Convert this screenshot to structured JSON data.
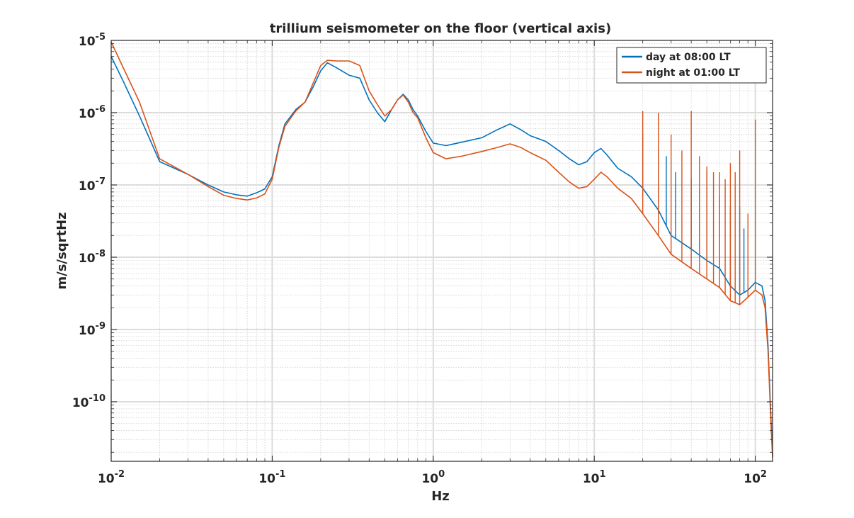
{
  "chart_data": {
    "type": "line",
    "title": "trillium seismometer on the floor (vertical axis)",
    "xlabel": "Hz",
    "ylabel": "m/s/sqrtHz",
    "xscale": "log",
    "yscale": "log",
    "xlim": [
      0.01,
      128
    ],
    "ylim": [
      1.5e-11,
      1e-05
    ],
    "grid": "on (major and minor)",
    "legend_location": "top-right",
    "x_ticks": [
      {
        "base": "10",
        "exp": "-2",
        "value": 0.01
      },
      {
        "base": "10",
        "exp": "-1",
        "value": 0.1
      },
      {
        "base": "10",
        "exp": "0",
        "value": 1
      },
      {
        "base": "10",
        "exp": "1",
        "value": 10
      },
      {
        "base": "10",
        "exp": "2",
        "value": 100
      }
    ],
    "y_ticks": [
      {
        "base": "10",
        "exp": "-10",
        "value": 1e-10
      },
      {
        "base": "10",
        "exp": "-9",
        "value": 1e-09
      },
      {
        "base": "10",
        "exp": "-8",
        "value": 1e-08
      },
      {
        "base": "10",
        "exp": "-7",
        "value": 1e-07
      },
      {
        "base": "10",
        "exp": "-6",
        "value": 1e-06
      },
      {
        "base": "10",
        "exp": "-5",
        "value": 1e-05
      }
    ],
    "series": [
      {
        "name": "day at 08:00 LT",
        "color": "#0072bd",
        "points": [
          [
            0.01,
            6e-06
          ],
          [
            0.012,
            2.6e-06
          ],
          [
            0.015,
            9e-07
          ],
          [
            0.02,
            2.1e-07
          ],
          [
            0.03,
            1.4e-07
          ],
          [
            0.04,
            1e-07
          ],
          [
            0.05,
            8e-08
          ],
          [
            0.06,
            7.3e-08
          ],
          [
            0.07,
            7e-08
          ],
          [
            0.08,
            7.8e-08
          ],
          [
            0.09,
            8.8e-08
          ],
          [
            0.1,
            1.3e-07
          ],
          [
            0.11,
            3.5e-07
          ],
          [
            0.12,
            7e-07
          ],
          [
            0.14,
            1.1e-06
          ],
          [
            0.16,
            1.4e-06
          ],
          [
            0.18,
            2.3e-06
          ],
          [
            0.2,
            3.8e-06
          ],
          [
            0.22,
            4.9e-06
          ],
          [
            0.25,
            4.2e-06
          ],
          [
            0.3,
            3.3e-06
          ],
          [
            0.35,
            3e-06
          ],
          [
            0.4,
            1.5e-06
          ],
          [
            0.45,
            1e-06
          ],
          [
            0.5,
            7.5e-07
          ],
          [
            0.55,
            1.1e-06
          ],
          [
            0.6,
            1.5e-06
          ],
          [
            0.65,
            1.8e-06
          ],
          [
            0.7,
            1.5e-06
          ],
          [
            0.75,
            1.1e-06
          ],
          [
            0.8,
            9e-07
          ],
          [
            0.9,
            5.5e-07
          ],
          [
            1.0,
            3.8e-07
          ],
          [
            1.2,
            3.5e-07
          ],
          [
            1.5,
            3.9e-07
          ],
          [
            2.0,
            4.5e-07
          ],
          [
            2.5,
            5.8e-07
          ],
          [
            3.0,
            7e-07
          ],
          [
            3.5,
            5.8e-07
          ],
          [
            4.0,
            4.8e-07
          ],
          [
            5.0,
            4e-07
          ],
          [
            6.0,
            3e-07
          ],
          [
            7.0,
            2.3e-07
          ],
          [
            8.0,
            1.9e-07
          ],
          [
            9.0,
            2.1e-07
          ],
          [
            10.0,
            2.8e-07
          ],
          [
            11.0,
            3.2e-07
          ],
          [
            12.0,
            2.6e-07
          ],
          [
            14.0,
            1.7e-07
          ],
          [
            17.0,
            1.3e-07
          ],
          [
            20.0,
            9e-08
          ],
          [
            25.0,
            4.5e-08
          ],
          [
            30.0,
            2e-08
          ],
          [
            40.0,
            1.3e-08
          ],
          [
            50.0,
            9e-09
          ],
          [
            60.0,
            7e-09
          ],
          [
            70.0,
            4e-09
          ],
          [
            80.0,
            3e-09
          ],
          [
            90.0,
            3.5e-09
          ],
          [
            100.0,
            4.5e-09
          ],
          [
            110.0,
            4e-09
          ],
          [
            115.0,
            2.5e-09
          ],
          [
            120.0,
            6e-10
          ],
          [
            125.0,
            6e-11
          ],
          [
            128.0,
            1.8e-11
          ]
        ],
        "spikes": [
          [
            20,
            5e-07
          ],
          [
            25,
            3e-07
          ],
          [
            28,
            2.5e-07
          ],
          [
            32,
            1.5e-07
          ],
          [
            40,
            1.2e-07
          ],
          [
            45,
            9e-08
          ],
          [
            50,
            1.6e-07
          ],
          [
            60,
            7e-08
          ],
          [
            70,
            5e-08
          ],
          [
            80,
            5e-08
          ],
          [
            85,
            2.5e-08
          ]
        ]
      },
      {
        "name": "night at 01:00 LT",
        "color": "#d95319",
        "points": [
          [
            0.01,
            9.5e-06
          ],
          [
            0.012,
            4e-06
          ],
          [
            0.015,
            1.4e-06
          ],
          [
            0.02,
            2.3e-07
          ],
          [
            0.03,
            1.4e-07
          ],
          [
            0.04,
            9.5e-08
          ],
          [
            0.05,
            7.2e-08
          ],
          [
            0.06,
            6.5e-08
          ],
          [
            0.07,
            6.2e-08
          ],
          [
            0.08,
            6.6e-08
          ],
          [
            0.09,
            7.5e-08
          ],
          [
            0.1,
            1.2e-07
          ],
          [
            0.11,
            3.3e-07
          ],
          [
            0.12,
            6.5e-07
          ],
          [
            0.14,
            1.05e-06
          ],
          [
            0.16,
            1.4e-06
          ],
          [
            0.18,
            2.6e-06
          ],
          [
            0.2,
            4.5e-06
          ],
          [
            0.22,
            5.3e-06
          ],
          [
            0.25,
            5.2e-06
          ],
          [
            0.3,
            5.2e-06
          ],
          [
            0.35,
            4.5e-06
          ],
          [
            0.4,
            2e-06
          ],
          [
            0.45,
            1.3e-06
          ],
          [
            0.5,
            9e-07
          ],
          [
            0.55,
            1.1e-06
          ],
          [
            0.6,
            1.5e-06
          ],
          [
            0.65,
            1.75e-06
          ],
          [
            0.7,
            1.4e-06
          ],
          [
            0.75,
            1e-06
          ],
          [
            0.8,
            8.5e-07
          ],
          [
            0.9,
            4.5e-07
          ],
          [
            1.0,
            2.8e-07
          ],
          [
            1.2,
            2.3e-07
          ],
          [
            1.5,
            2.5e-07
          ],
          [
            2.0,
            2.9e-07
          ],
          [
            2.5,
            3.3e-07
          ],
          [
            3.0,
            3.7e-07
          ],
          [
            3.5,
            3.3e-07
          ],
          [
            4.0,
            2.8e-07
          ],
          [
            5.0,
            2.2e-07
          ],
          [
            6.0,
            1.5e-07
          ],
          [
            7.0,
            1.1e-07
          ],
          [
            8.0,
            9e-08
          ],
          [
            9.0,
            9.5e-08
          ],
          [
            10.0,
            1.2e-07
          ],
          [
            11.0,
            1.5e-07
          ],
          [
            12.0,
            1.3e-07
          ],
          [
            14.0,
            9e-08
          ],
          [
            17.0,
            6.5e-08
          ],
          [
            20.0,
            4e-08
          ],
          [
            25.0,
            2e-08
          ],
          [
            30.0,
            1.1e-08
          ],
          [
            40.0,
            7e-09
          ],
          [
            50.0,
            5e-09
          ],
          [
            60.0,
            3.8e-09
          ],
          [
            70.0,
            2.5e-09
          ],
          [
            80.0,
            2.2e-09
          ],
          [
            90.0,
            2.8e-09
          ],
          [
            100.0,
            3.5e-09
          ],
          [
            110.0,
            3e-09
          ],
          [
            115.0,
            2e-09
          ],
          [
            120.0,
            5e-10
          ],
          [
            125.0,
            5e-11
          ],
          [
            128.0,
            1.7e-11
          ]
        ],
        "spikes": [
          [
            20,
            1.05e-06
          ],
          [
            25,
            1e-06
          ],
          [
            30,
            5e-07
          ],
          [
            35,
            3e-07
          ],
          [
            40,
            1.05e-06
          ],
          [
            45,
            2.5e-07
          ],
          [
            50,
            1.8e-07
          ],
          [
            55,
            1.5e-07
          ],
          [
            60,
            1.5e-07
          ],
          [
            65,
            1.2e-07
          ],
          [
            70,
            2e-07
          ],
          [
            75,
            1.5e-07
          ],
          [
            80,
            3e-07
          ],
          [
            90,
            4e-08
          ],
          [
            100,
            8e-07
          ]
        ]
      }
    ]
  }
}
